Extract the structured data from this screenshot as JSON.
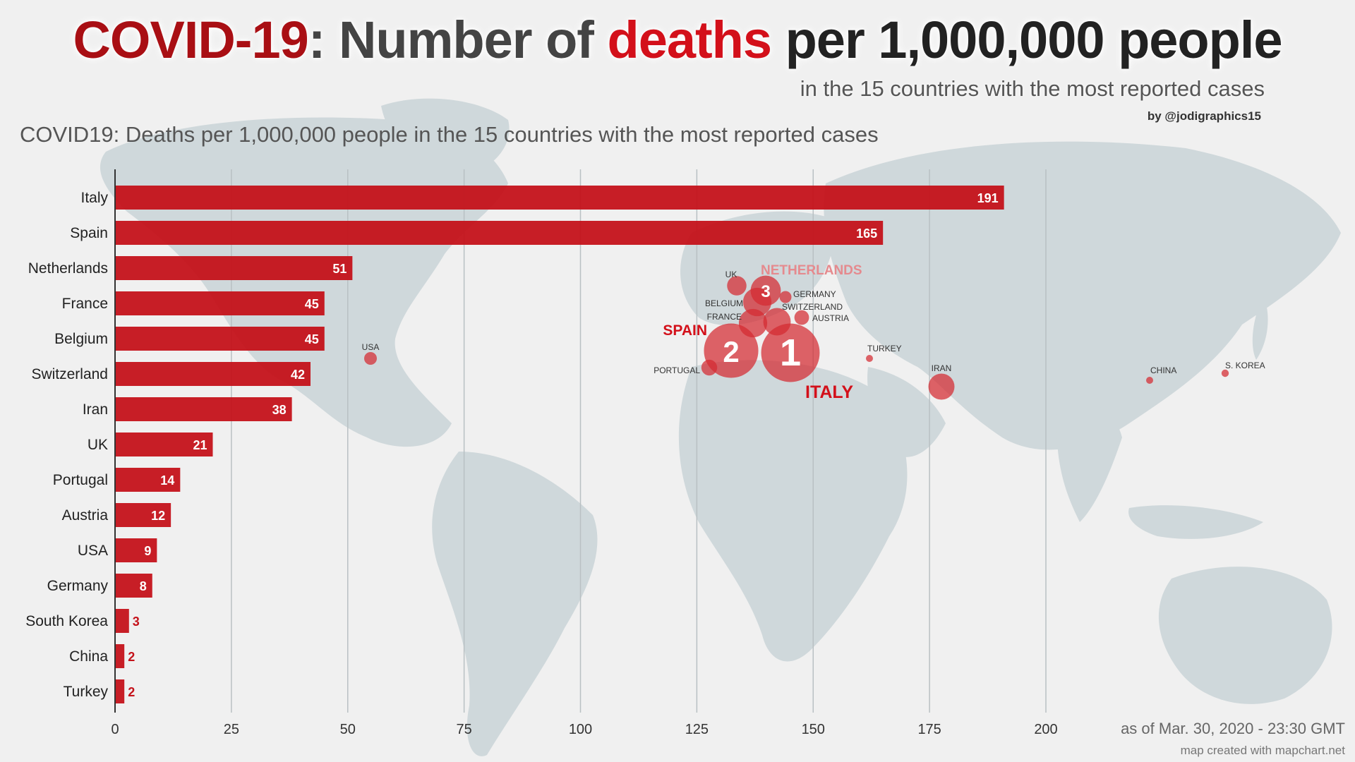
{
  "title": {
    "part1": "COVID-19",
    "part2": ": Number of ",
    "part3": "deaths",
    "part4": " per 1,000,000 people"
  },
  "subtitle": "in the 15 countries with the most reported cases",
  "byline": "by @jodigraphics15",
  "footer": {
    "date": "as of Mar. 30, 2020 - 23:30 GMT",
    "credit": "map created with mapchart.net"
  },
  "colors": {
    "bar": "#c4121a",
    "bubble": "#d42a30",
    "land": "#cfd8db",
    "background": "#f0f0f0",
    "grid": "#b9c0c3"
  },
  "chart_data": {
    "type": "bar",
    "orientation": "horizontal",
    "title": "COVID19: Deaths per 1,000,000 people in the 15 countries with the most reported cases",
    "categories": [
      "Italy",
      "Spain",
      "Netherlands",
      "France",
      "Belgium",
      "Switzerland",
      "Iran",
      "UK",
      "Portugal",
      "Austria",
      "USA",
      "Germany",
      "South Korea",
      "China",
      "Turkey"
    ],
    "values": [
      191,
      165,
      51,
      45,
      45,
      42,
      38,
      21,
      14,
      12,
      9,
      8,
      3,
      2,
      2
    ],
    "xlim": [
      0,
      200
    ],
    "xticks": [
      0,
      25,
      50,
      75,
      100,
      125,
      150,
      175,
      200
    ],
    "grid": true,
    "data_labels": true
  },
  "map_labels": {
    "small": [
      {
        "name": "uk-label",
        "text": "UK"
      },
      {
        "name": "germany-label",
        "text": "GERMANY"
      },
      {
        "name": "belgium-label",
        "text": "BELGIUM"
      },
      {
        "name": "switzerland-label",
        "text": "SWITZERLAND"
      },
      {
        "name": "france-label",
        "text": "FRANCE"
      },
      {
        "name": "austria-label",
        "text": "AUSTRIA"
      },
      {
        "name": "usa-label",
        "text": "USA"
      },
      {
        "name": "turkey-label",
        "text": "TURKEY"
      },
      {
        "name": "portugal-label",
        "text": "PORTUGAL"
      },
      {
        "name": "iran-label",
        "text": "IRAN"
      },
      {
        "name": "china-label",
        "text": "CHINA"
      },
      {
        "name": "south-korea-label",
        "text": "S. KOREA"
      }
    ],
    "big": [
      {
        "name": "netherlands-big-label",
        "text": "NETHERLANDS"
      },
      {
        "name": "spain-big-label",
        "text": "SPAIN"
      },
      {
        "name": "italy-big-label",
        "text": "ITALY"
      }
    ],
    "rank_badges": [
      "1",
      "2",
      "3"
    ]
  }
}
